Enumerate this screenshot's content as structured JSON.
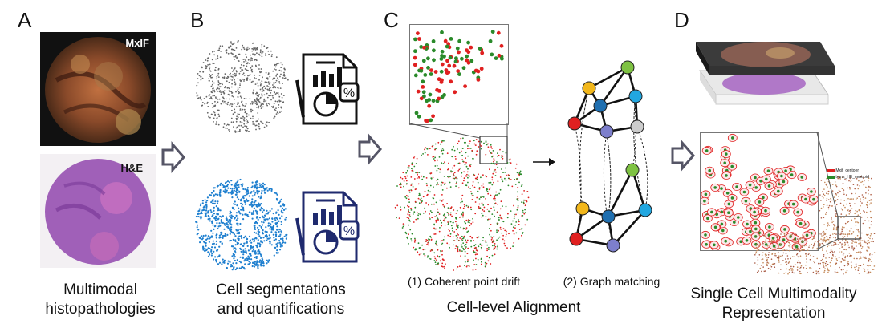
{
  "panels": {
    "a": {
      "letter": "A",
      "tag_top": "MxIF",
      "tag_bottom": "H&E",
      "caption_line1": "Multimodal",
      "caption_line2": "histopathologies"
    },
    "b": {
      "letter": "B",
      "caption_line1": "Cell segmentations",
      "caption_line2": "and quantifications"
    },
    "c": {
      "letter": "C",
      "sub1": "(1) Coherent point drift",
      "sub2": "(2) Graph matching",
      "caption": "Cell-level Alignment"
    },
    "d": {
      "letter": "D",
      "legend": [
        "Mxif_centoer",
        "trans_HE_centroid"
      ],
      "caption_line1": "Single Cell Multimodality",
      "caption_line2": "Representation"
    }
  },
  "colors": {
    "mxif_bg": "#111111",
    "he_purple": "#a060b8",
    "seg_blue": "#1e7fcf",
    "icon_navy": "#1f2a6e",
    "red": "#e02020",
    "green": "#2a8a2a",
    "node_yellow": "#f2b71b",
    "node_blue": "#1f6fb0",
    "node_cyan": "#22a7e0",
    "node_purple": "#7d7fcc",
    "node_gray": "#cccccc",
    "node_green": "#7ec242"
  }
}
